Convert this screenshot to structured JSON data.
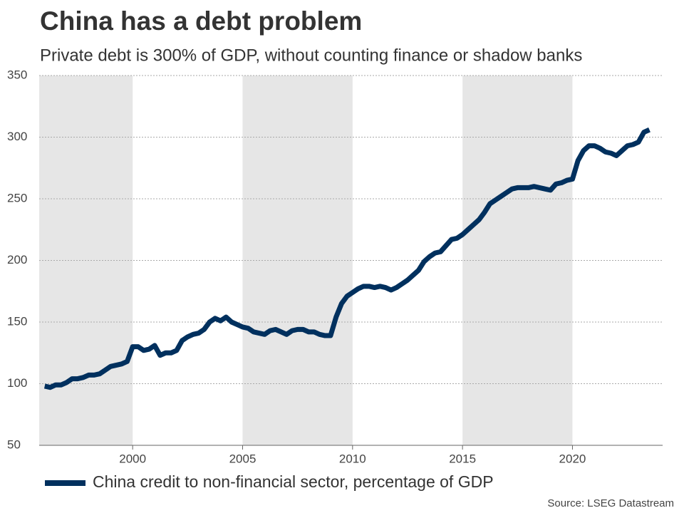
{
  "chart_data": {
    "type": "line",
    "title": "China has a debt problem",
    "subtitle": "Private debt is 300% of GDP, without counting finance or shadow banks",
    "source": "Source: LSEG Datastream",
    "x": [
      1996.0,
      1996.25,
      1996.5,
      1996.75,
      1997.0,
      1997.25,
      1997.5,
      1997.75,
      1998.0,
      1998.25,
      1998.5,
      1998.75,
      1999.0,
      1999.25,
      1999.5,
      1999.75,
      2000.0,
      2000.25,
      2000.5,
      2000.75,
      2001.0,
      2001.25,
      2001.5,
      2001.75,
      2002.0,
      2002.25,
      2002.5,
      2002.75,
      2003.0,
      2003.25,
      2003.5,
      2003.75,
      2004.0,
      2004.25,
      2004.5,
      2004.75,
      2005.0,
      2005.25,
      2005.5,
      2005.75,
      2006.0,
      2006.25,
      2006.5,
      2006.75,
      2007.0,
      2007.25,
      2007.5,
      2007.75,
      2008.0,
      2008.25,
      2008.5,
      2008.75,
      2009.0,
      2009.25,
      2009.5,
      2009.75,
      2010.0,
      2010.25,
      2010.5,
      2010.75,
      2011.0,
      2011.25,
      2011.5,
      2011.75,
      2012.0,
      2012.25,
      2012.5,
      2012.75,
      2013.0,
      2013.25,
      2013.5,
      2013.75,
      2014.0,
      2014.25,
      2014.5,
      2014.75,
      2015.0,
      2015.25,
      2015.5,
      2015.75,
      2016.0,
      2016.25,
      2016.5,
      2016.75,
      2017.0,
      2017.25,
      2017.5,
      2017.75,
      2018.0,
      2018.25,
      2018.5,
      2018.75,
      2019.0,
      2019.25,
      2019.5,
      2019.75,
      2020.0,
      2020.25,
      2020.5,
      2020.75,
      2021.0,
      2021.25,
      2021.5,
      2021.75,
      2022.0,
      2022.25,
      2022.5,
      2022.75,
      2023.0,
      2023.25,
      2023.5
    ],
    "series": [
      {
        "name": "China credit to non-financial sector, percentage of GDP",
        "color": "#00305e",
        "values": [
          98,
          97,
          99,
          99,
          101,
          104,
          104,
          105,
          107,
          107,
          108,
          111,
          114,
          115,
          116,
          118,
          130,
          130,
          127,
          128,
          131,
          123,
          125,
          125,
          127,
          135,
          138,
          140,
          141,
          144,
          150,
          153,
          151,
          154,
          150,
          148,
          146,
          145,
          142,
          141,
          140,
          143,
          144,
          142,
          140,
          143,
          144,
          144,
          142,
          142,
          140,
          139,
          139,
          154,
          165,
          171,
          174,
          177,
          179,
          179,
          178,
          179,
          178,
          176,
          178,
          181,
          184,
          188,
          192,
          199,
          203,
          206,
          207,
          212,
          217,
          218,
          221,
          225,
          229,
          233,
          239,
          246,
          249,
          252,
          255,
          258,
          259,
          259,
          259,
          260,
          259,
          258,
          257,
          262,
          263,
          265,
          266,
          281,
          289,
          293,
          293,
          291,
          288,
          287,
          285,
          289,
          293,
          294,
          296,
          304,
          306
        ]
      }
    ],
    "xlim": [
      1995.75,
      2024.1
    ],
    "xticks": [
      2000,
      2005,
      2010,
      2015,
      2020
    ],
    "ylim": [
      50,
      350
    ],
    "yticks": [
      50,
      100,
      150,
      200,
      250,
      300,
      350
    ],
    "grid": true,
    "legend": "bottom-left"
  }
}
